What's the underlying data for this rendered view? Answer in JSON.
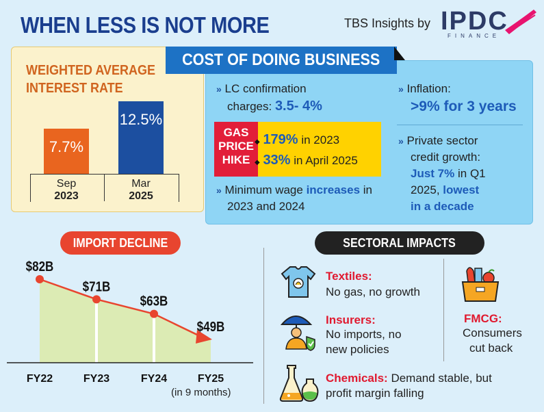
{
  "title": "WHEN LESS IS NOT MORE",
  "brand": {
    "by_text": "TBS Insights by",
    "logo_text": "IPDC",
    "logo_sub": "FINANCE"
  },
  "interest": {
    "title_line1": "WEIGHTED AVERAGE",
    "title_line2": "INTEREST RATE",
    "bars": [
      {
        "value_label": "7.7%",
        "value": 7.7,
        "month": "Sep",
        "year": "2023",
        "color": "#e9651f"
      },
      {
        "value_label": "12.5%",
        "value": 12.5,
        "month": "Mar",
        "year": "2025",
        "color": "#1c4fa0"
      }
    ]
  },
  "cost": {
    "banner": "COST OF DOING BUSINESS",
    "lc_label": "LC confirmation",
    "lc_label2": "charges:",
    "lc_value": "3.5- 4%",
    "gas_label_1": "GAS",
    "gas_label_2": "PRICE",
    "gas_label_3": "HIKE",
    "gas_1_value": "179%",
    "gas_1_text": "in 2023",
    "gas_2_value": "33%",
    "gas_2_text": "in April 2025",
    "wage_text_1": "Minimum wage",
    "wage_highlight": "increases",
    "wage_text_2": "in",
    "wage_text_3": "2023 and 2024",
    "inflation_label": "Inflation:",
    "inflation_value": ">9% for 3 years",
    "credit_label_1": "Private sector",
    "credit_label_2": "credit growth:",
    "credit_highlight": "Just 7%",
    "credit_text": "in Q1",
    "credit_text_2": "2025,",
    "credit_highlight_2": "lowest",
    "credit_highlight_3": "in a decade"
  },
  "imports": {
    "title": "IMPORT DECLINE",
    "note": "(in 9 months)",
    "colors": {
      "line": "#e8452f",
      "fill": "#dcebb4"
    }
  },
  "chart_data": {
    "type": "area",
    "title": "IMPORT DECLINE",
    "categories": [
      "FY22",
      "FY23",
      "FY24",
      "FY25"
    ],
    "values": [
      82,
      71,
      63,
      49
    ],
    "value_labels": [
      "$82B",
      "$71B",
      "$63B",
      "$49B"
    ],
    "unit": "$B",
    "ylim": [
      0,
      90
    ]
  },
  "sectors": {
    "title": "SECTORAL IMPACTS",
    "items": [
      {
        "name": "Textiles:",
        "desc_1": "No gas, no growth",
        "icon": "tshirt-icon"
      },
      {
        "name": "Insurers:",
        "desc_1": "No imports, no",
        "desc_2": "new  policies",
        "icon": "umbrella-person-icon"
      },
      {
        "name": "FMCG:",
        "desc_1": "Consumers",
        "desc_2": "cut back",
        "icon": "grocery-box-icon"
      },
      {
        "name": "Chemicals:",
        "desc_1": "Demand stable, but",
        "desc_2": "profit margin falling",
        "icon": "flask-icon"
      }
    ]
  }
}
